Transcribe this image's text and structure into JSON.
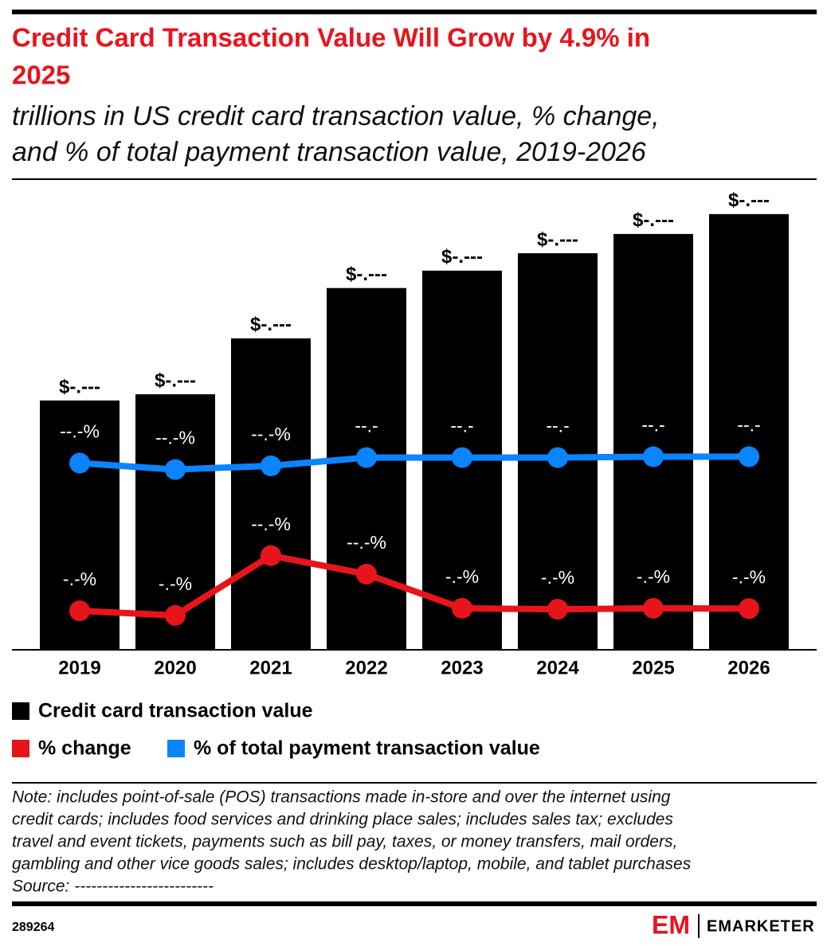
{
  "chart_data": {
    "type": "combo",
    "title": [
      "Credit Card Transaction Value Will Grow by 4.9% in",
      "2025"
    ],
    "subtitle": [
      "trillions in US credit card transaction value, % change,",
      "and % of total payment transaction value, 2019-2026"
    ],
    "categories": [
      "2019",
      "2020",
      "2021",
      "2022",
      "2023",
      "2024",
      "2025",
      "2026"
    ],
    "series": [
      {
        "name": "Credit card transaction value",
        "type": "bar",
        "color": "#000000",
        "values": [
          4.0,
          4.1,
          5.0,
          5.81,
          6.09,
          6.37,
          6.68,
          7.0
        ],
        "value_labels": [
          "$-.---",
          "$-.---",
          "$-.---",
          "$-.---",
          "$-.---",
          "$-.---",
          "$-.---",
          "$-.---"
        ]
      },
      {
        "name": "% change",
        "type": "line",
        "axis": "y2",
        "color": "#e8141c",
        "values": [
          4.1,
          2.6,
          22.0,
          16.0,
          4.9,
          4.6,
          4.9,
          4.8
        ],
        "value_labels": [
          "-.-%",
          "-.-%",
          "--.-%",
          "--.-%",
          "-.-%",
          "-.-%",
          "-.-%",
          "-.-%"
        ]
      },
      {
        "name": "% of total payment transaction value",
        "type": "line",
        "axis": "y3",
        "color": "#0a84ff",
        "values": [
          20.3,
          19.6,
          20.0,
          20.9,
          20.9,
          20.9,
          21.0,
          21.0
        ],
        "value_labels": [
          "--.-%",
          "--.-%",
          "--.-%",
          "--.-",
          "--.-",
          "--.-",
          "--.-",
          "--.-"
        ]
      }
    ],
    "ylim": [
      0,
      7.37
    ],
    "y2lim": [
      -8.3,
      140.3
    ],
    "y3lim": [
      0,
      50
    ],
    "note": [
      "Note: includes point-of-sale (POS) transactions made in-store and over the internet using",
      "credit cards; includes food services and drinking place sales; includes sales tax; excludes",
      "travel and event tickets, payments such as bill pay, taxes, or money transfers, mail orders,",
      "gambling and other vice goods sales; includes desktop/laptop, mobile, and tablet purchases",
      "Source: -------------------------"
    ],
    "chart_id": "289264",
    "logo_mark": "EM",
    "logo": "EMARKETER"
  }
}
